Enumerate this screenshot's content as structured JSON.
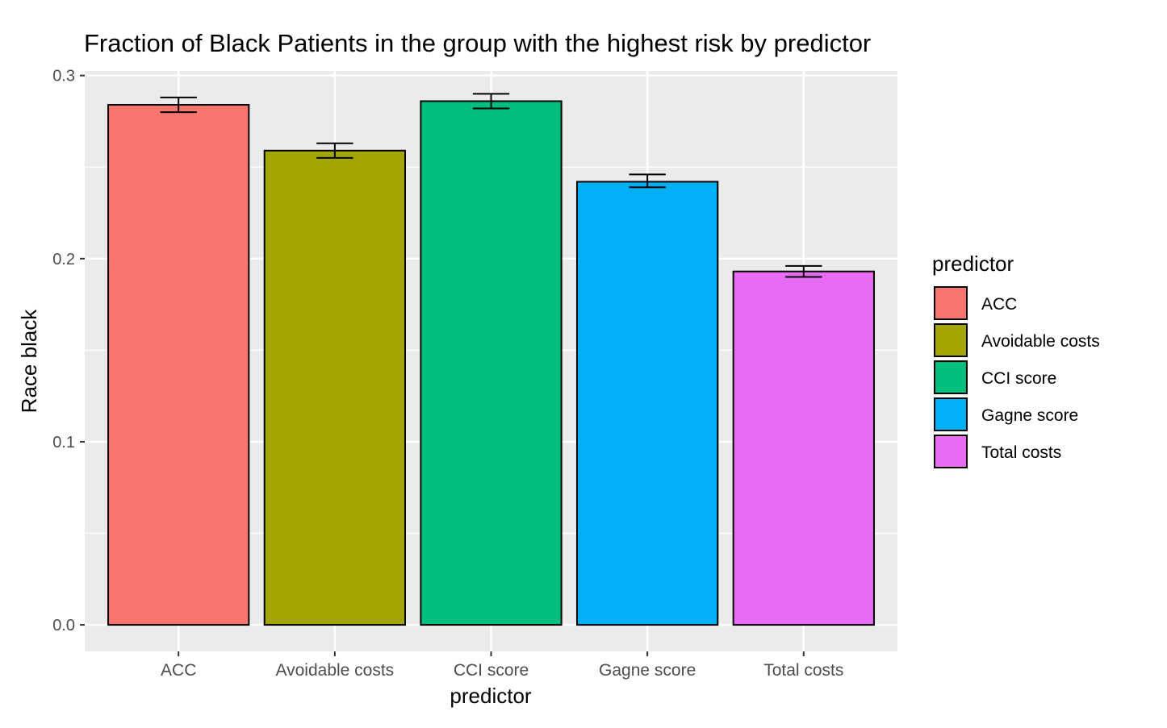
{
  "chart_data": {
    "type": "bar",
    "title": "Fraction of Black Patients in the group with the highest risk by predictor",
    "xlabel": "predictor",
    "ylabel": "Race black",
    "categories": [
      "ACC",
      "Avoidable costs",
      "CCI score",
      "Gagne score",
      "Total costs"
    ],
    "values": [
      0.284,
      0.259,
      0.286,
      0.242,
      0.193
    ],
    "error_bars": {
      "lower": [
        0.28,
        0.255,
        0.282,
        0.239,
        0.19
      ],
      "upper": [
        0.288,
        0.263,
        0.29,
        0.246,
        0.196
      ]
    },
    "colors": [
      "#F8766D",
      "#A3A500",
      "#00BF7D",
      "#00B0F6",
      "#E76BF3"
    ],
    "ylim": [
      -0.0145,
      0.3025
    ],
    "yticks": [
      0.0,
      0.1,
      0.2,
      0.3
    ],
    "ytick_labels": [
      "0.0",
      "0.1",
      "0.2",
      "0.3"
    ],
    "grid": true,
    "panel_background": "#EBEBEB",
    "legend": {
      "title": "predictor",
      "position": "right",
      "entries": [
        "ACC",
        "Avoidable costs",
        "CCI score",
        "Gagne score",
        "Total costs"
      ]
    }
  }
}
